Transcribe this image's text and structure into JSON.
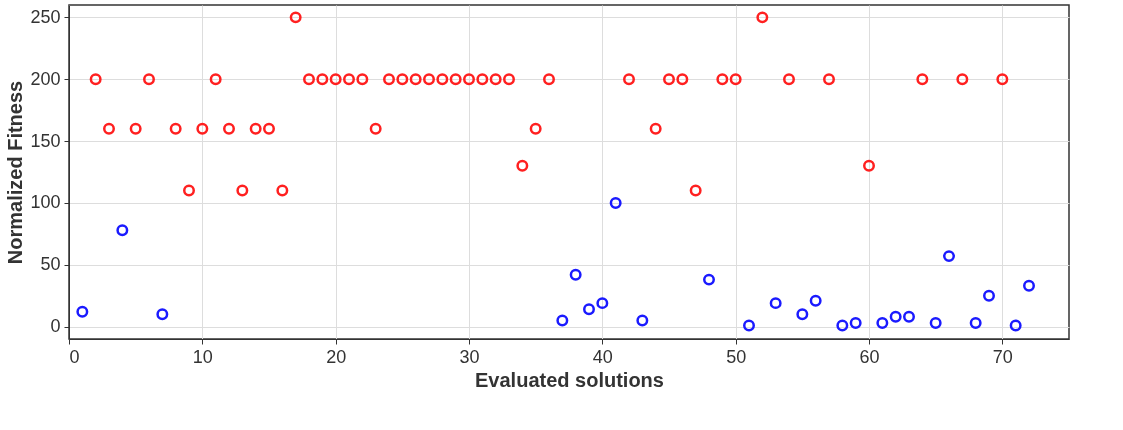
{
  "chart_data": {
    "type": "scatter",
    "xlabel": "Evaluated solutions",
    "ylabel": "Normalized Fitness",
    "xlim": [
      0,
      75
    ],
    "xticks": [
      0,
      10,
      20,
      30,
      40,
      50,
      60,
      70
    ],
    "ylim": [
      -10,
      260
    ],
    "yticks": [
      0,
      50,
      100,
      150,
      200,
      250
    ],
    "grid": true,
    "marker": "circle",
    "legend": false,
    "series": [
      {
        "color": "#ff2020",
        "x": [
          2,
          3,
          5,
          6,
          8,
          9,
          10,
          11,
          12,
          13,
          14,
          15,
          16,
          17,
          18,
          19,
          20,
          21,
          22,
          23,
          24,
          25,
          26,
          27,
          28,
          29,
          30,
          31,
          32,
          33,
          34,
          35,
          36,
          42,
          44,
          45,
          46,
          47,
          49,
          50,
          52,
          54,
          57,
          60,
          64,
          67,
          70
        ],
        "values": [
          200,
          160,
          160,
          200,
          160,
          110,
          160,
          200,
          160,
          110,
          160,
          160,
          110,
          250,
          200,
          200,
          200,
          200,
          200,
          160,
          200,
          200,
          200,
          200,
          200,
          200,
          200,
          200,
          200,
          200,
          130,
          160,
          200,
          200,
          160,
          200,
          200,
          110,
          200,
          200,
          250,
          200,
          200,
          130,
          200,
          200,
          200
        ]
      },
      {
        "color": "#1a1aff",
        "x": [
          1,
          4,
          7,
          37,
          38,
          39,
          40,
          41,
          43,
          48,
          51,
          53,
          55,
          56,
          58,
          59,
          61,
          62,
          63,
          65,
          66,
          68,
          69,
          71,
          72
        ],
        "values": [
          12,
          78,
          10,
          5,
          42,
          14,
          19,
          100,
          5,
          38,
          1,
          19,
          10,
          21,
          1,
          3,
          3,
          8,
          8,
          3,
          57,
          3,
          25,
          1,
          33
        ]
      }
    ]
  }
}
